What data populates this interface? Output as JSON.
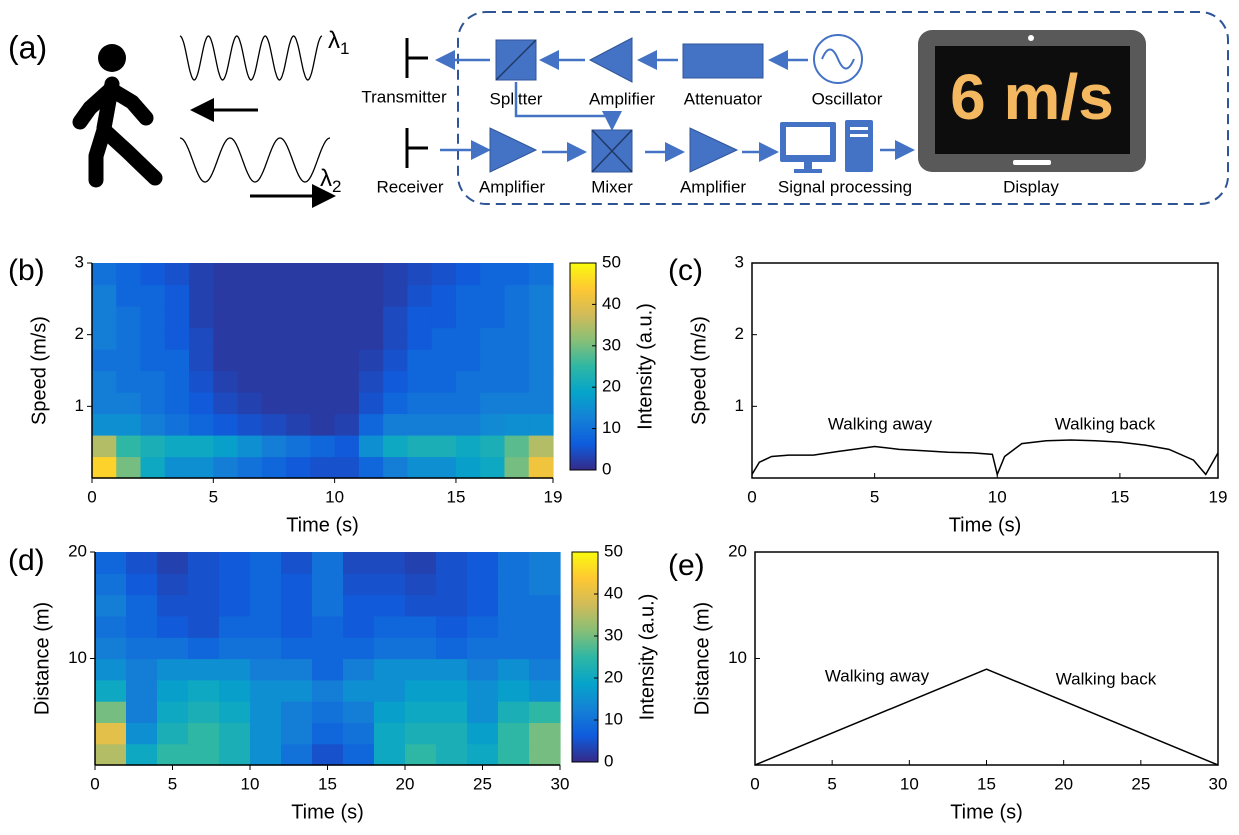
{
  "diagram": {
    "panel_label": "(a)",
    "wavelengths": [
      {
        "symbol": "λ",
        "subscript": "1"
      },
      {
        "symbol": "λ",
        "subscript": "2"
      }
    ],
    "transmitter": "Transmitter",
    "receiver": "Receiver",
    "splitter": "Splitter",
    "amplifier_top": "Amplifier",
    "attenuator": "Attenuator",
    "oscillator": "Oscillator",
    "amplifier_in": "Amplifier",
    "mixer": "Mixer",
    "amplifier_out": "Amplifier",
    "signal_processing": "Signal processing",
    "display": "Display",
    "display_reading": "6 m/s"
  },
  "chart_data": [
    {
      "type": "heatmap",
      "panel_label": "(b)",
      "xlabel": "Time (s)",
      "ylabel": "Speed (m/s)",
      "clabel": "Intensity (a.u.)",
      "xlim": [
        0,
        19
      ],
      "ylim": [
        0,
        3
      ],
      "xticks": [
        0,
        5,
        10,
        15,
        19
      ],
      "yticks": [
        1,
        2,
        3
      ],
      "clim": [
        0,
        50
      ],
      "cticks": [
        0,
        10,
        20,
        30,
        40,
        50
      ],
      "colormap": [
        "#352a87",
        "#0f5cdd",
        "#1481d6",
        "#06a4ca",
        "#2eb7a4",
        "#87bf77",
        "#d1bb59",
        "#fec832",
        "#f9fb0e"
      ],
      "z": [
        [
          45,
          30,
          20,
          15,
          15,
          12,
          10,
          8,
          6,
          5,
          5,
          8,
          12,
          15,
          15,
          18,
          20,
          30,
          42
        ],
        [
          35,
          25,
          22,
          20,
          20,
          18,
          15,
          12,
          10,
          8,
          6,
          15,
          20,
          22,
          22,
          20,
          22,
          28,
          35
        ],
        [
          15,
          15,
          12,
          10,
          8,
          6,
          5,
          4,
          3,
          2,
          3,
          8,
          12,
          12,
          12,
          12,
          14,
          15,
          15
        ],
        [
          12,
          12,
          10,
          8,
          6,
          4,
          3,
          2,
          2,
          2,
          2,
          5,
          8,
          10,
          10,
          10,
          12,
          12,
          12
        ],
        [
          12,
          10,
          10,
          8,
          5,
          3,
          2,
          2,
          2,
          2,
          2,
          4,
          6,
          8,
          8,
          10,
          10,
          10,
          12
        ],
        [
          10,
          10,
          8,
          8,
          4,
          2,
          2,
          2,
          2,
          2,
          2,
          3,
          5,
          8,
          8,
          8,
          10,
          10,
          12
        ],
        [
          12,
          10,
          8,
          6,
          4,
          2,
          2,
          2,
          2,
          2,
          2,
          2,
          4,
          6,
          8,
          8,
          10,
          10,
          12
        ],
        [
          12,
          10,
          8,
          6,
          3,
          2,
          2,
          2,
          2,
          2,
          2,
          2,
          4,
          6,
          6,
          8,
          8,
          10,
          12
        ],
        [
          12,
          8,
          8,
          6,
          3,
          2,
          2,
          2,
          2,
          2,
          2,
          2,
          3,
          5,
          6,
          8,
          8,
          10,
          12
        ],
        [
          10,
          8,
          6,
          5,
          3,
          2,
          2,
          2,
          2,
          2,
          2,
          2,
          3,
          4,
          5,
          6,
          8,
          8,
          10
        ]
      ]
    },
    {
      "type": "line",
      "panel_label": "(c)",
      "xlabel": "Time (s)",
      "ylabel": "Speed (m/s)",
      "xlim": [
        0,
        19
      ],
      "ylim": [
        0,
        3
      ],
      "xticks": [
        0,
        5,
        10,
        15,
        19
      ],
      "yticks": [
        1,
        2,
        3
      ],
      "color": "#000000",
      "x": [
        0,
        0.3,
        0.8,
        1.5,
        2.5,
        3.5,
        5,
        6,
        7,
        8,
        9,
        9.8,
        10,
        10.3,
        11,
        12,
        13,
        14,
        15,
        16,
        17,
        18,
        18.5,
        19
      ],
      "values": [
        0.05,
        0.22,
        0.3,
        0.32,
        0.32,
        0.37,
        0.44,
        0.4,
        0.38,
        0.36,
        0.35,
        0.33,
        0.05,
        0.3,
        0.48,
        0.52,
        0.53,
        0.52,
        0.5,
        0.46,
        0.4,
        0.25,
        0.05,
        0.35
      ],
      "annotations": [
        "Walking away",
        "Walking back"
      ]
    },
    {
      "type": "heatmap",
      "panel_label": "(d)",
      "xlabel": "Time (s)",
      "ylabel": "Distance (m)",
      "clabel": "Intensity (a.u.)",
      "xlim": [
        0,
        30
      ],
      "ylim": [
        0,
        20
      ],
      "xticks": [
        0,
        5,
        10,
        15,
        20,
        25,
        30
      ],
      "yticks": [
        10,
        20
      ],
      "clim": [
        0,
        50
      ],
      "cticks": [
        0,
        10,
        20,
        30,
        40,
        50
      ],
      "colormap": [
        "#352a87",
        "#0f5cdd",
        "#1481d6",
        "#06a4ca",
        "#2eb7a4",
        "#87bf77",
        "#d1bb59",
        "#fec832",
        "#f9fb0e"
      ],
      "z": [
        [
          35,
          20,
          25,
          25,
          22,
          15,
          10,
          5,
          8,
          20,
          25,
          22,
          20,
          25,
          30
        ],
        [
          40,
          15,
          22,
          25,
          22,
          15,
          12,
          8,
          10,
          20,
          22,
          22,
          18,
          25,
          30
        ],
        [
          30,
          12,
          20,
          22,
          20,
          15,
          12,
          10,
          12,
          18,
          20,
          20,
          15,
          22,
          25
        ],
        [
          20,
          12,
          18,
          20,
          18,
          15,
          15,
          12,
          15,
          15,
          18,
          18,
          15,
          18,
          15
        ],
        [
          15,
          12,
          15,
          15,
          15,
          12,
          12,
          8,
          12,
          15,
          15,
          15,
          12,
          15,
          12
        ],
        [
          12,
          10,
          10,
          8,
          10,
          10,
          8,
          8,
          8,
          10,
          10,
          8,
          10,
          10,
          10
        ],
        [
          10,
          8,
          6,
          5,
          8,
          8,
          6,
          8,
          6,
          8,
          8,
          6,
          8,
          10,
          10
        ],
        [
          12,
          8,
          5,
          5,
          6,
          8,
          6,
          10,
          6,
          6,
          5,
          5,
          6,
          10,
          10
        ],
        [
          10,
          6,
          4,
          5,
          6,
          8,
          6,
          10,
          5,
          5,
          4,
          5,
          6,
          10,
          12
        ],
        [
          8,
          5,
          3,
          5,
          6,
          8,
          5,
          10,
          4,
          4,
          3,
          5,
          6,
          10,
          12
        ]
      ]
    },
    {
      "type": "line",
      "panel_label": "(e)",
      "xlabel": "Time (s)",
      "ylabel": "Distance (m)",
      "xlim": [
        0,
        30
      ],
      "ylim": [
        0,
        20
      ],
      "xticks": [
        0,
        5,
        10,
        15,
        20,
        25,
        30
      ],
      "yticks": [
        10,
        20
      ],
      "color": "#000000",
      "x": [
        0,
        15,
        30
      ],
      "values": [
        0,
        9,
        0
      ],
      "annotations": [
        "Walking away",
        "Walking back"
      ]
    }
  ]
}
